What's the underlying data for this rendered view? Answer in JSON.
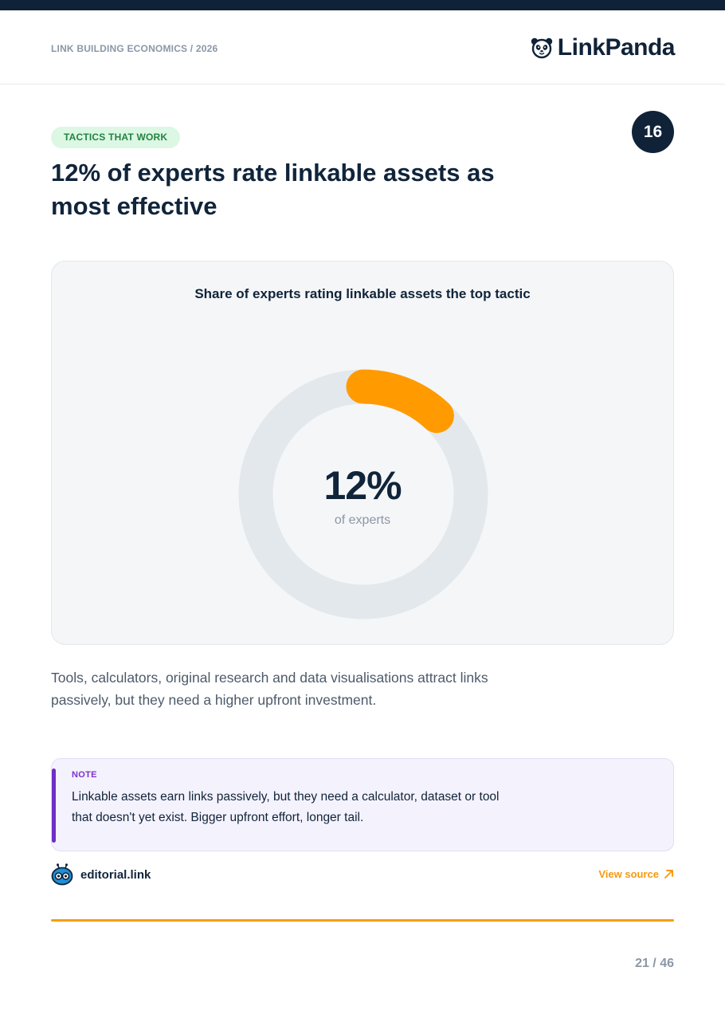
{
  "header": {
    "kicker": "LINK BUILDING ECONOMICS / 2026",
    "brand": "LinkPanda",
    "brand_icon": "panda-icon"
  },
  "tag": "TACTICS THAT WORK",
  "slide_number": "16",
  "headline": "12% of experts rate linkable assets as most effective",
  "chart_data": {
    "type": "pie",
    "title": "Share of experts rating linkable assets the top tactic",
    "values": [
      12,
      88
    ],
    "value_label": "12%",
    "caption": "of experts",
    "colors": {
      "value": "#ff9b00",
      "track": "#e3e8ec"
    }
  },
  "body": "Tools, calculators, original research and data visualisations attract links passively, but they need a higher upfront investment.",
  "note": {
    "label": "NOTE",
    "text": "Linkable assets earn links passively, but they need a calculator, dataset or tool that doesn't yet exist. Bigger upfront effort, longer tail."
  },
  "source": {
    "name": "editorial.link",
    "icon": "robot-icon",
    "link_label": "View source",
    "link_icon": "arrow-up-right-icon"
  },
  "pagination": "21 / 46",
  "colors": {
    "navy": "#0f2238",
    "accent": "#f59e0b",
    "tag_bg": "#dcf7e4",
    "tag_text": "#23833f",
    "note_accent": "#6c2fc9"
  }
}
